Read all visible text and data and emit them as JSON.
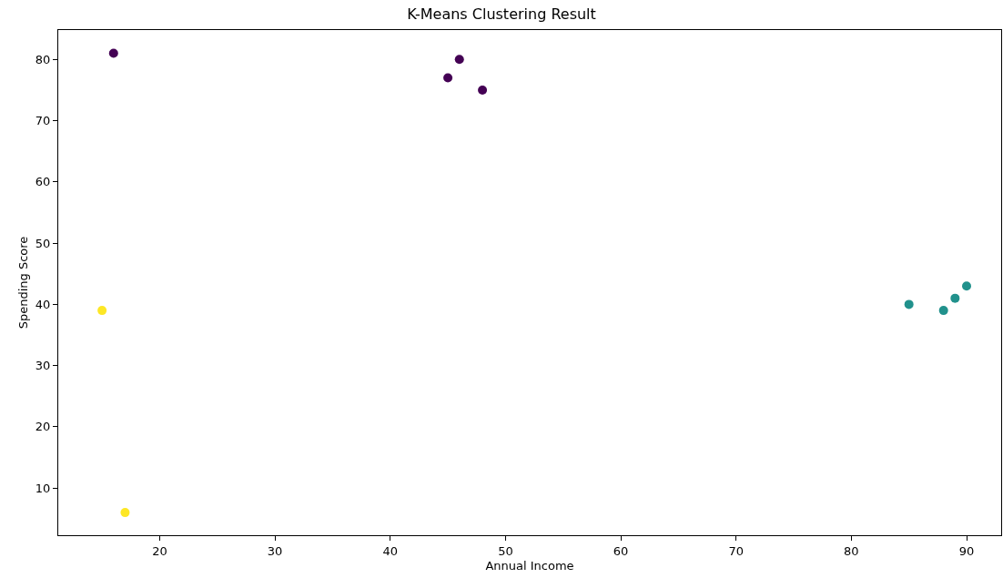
{
  "chart_data": {
    "type": "scatter",
    "title": "K-Means Clustering Result",
    "xlabel": "Annual Income",
    "ylabel": "Spending Score",
    "xlim": [
      11.2,
      93
    ],
    "ylim": [
      2.3,
      84.8
    ],
    "xticks": [
      20,
      30,
      40,
      50,
      60,
      70,
      80,
      90
    ],
    "yticks": [
      10,
      20,
      30,
      40,
      50,
      60,
      70,
      80
    ],
    "marker": "circle",
    "series": [
      {
        "color": "#440154",
        "x": [
          16,
          46,
          45,
          48
        ],
        "values": [
          81,
          80,
          77,
          75
        ]
      },
      {
        "color": "#fde725",
        "x": [
          15,
          17
        ],
        "values": [
          39,
          6
        ]
      },
      {
        "color": "#21918c",
        "x": [
          85,
          88,
          89,
          90
        ],
        "values": [
          40,
          39,
          41,
          43
        ]
      }
    ]
  }
}
